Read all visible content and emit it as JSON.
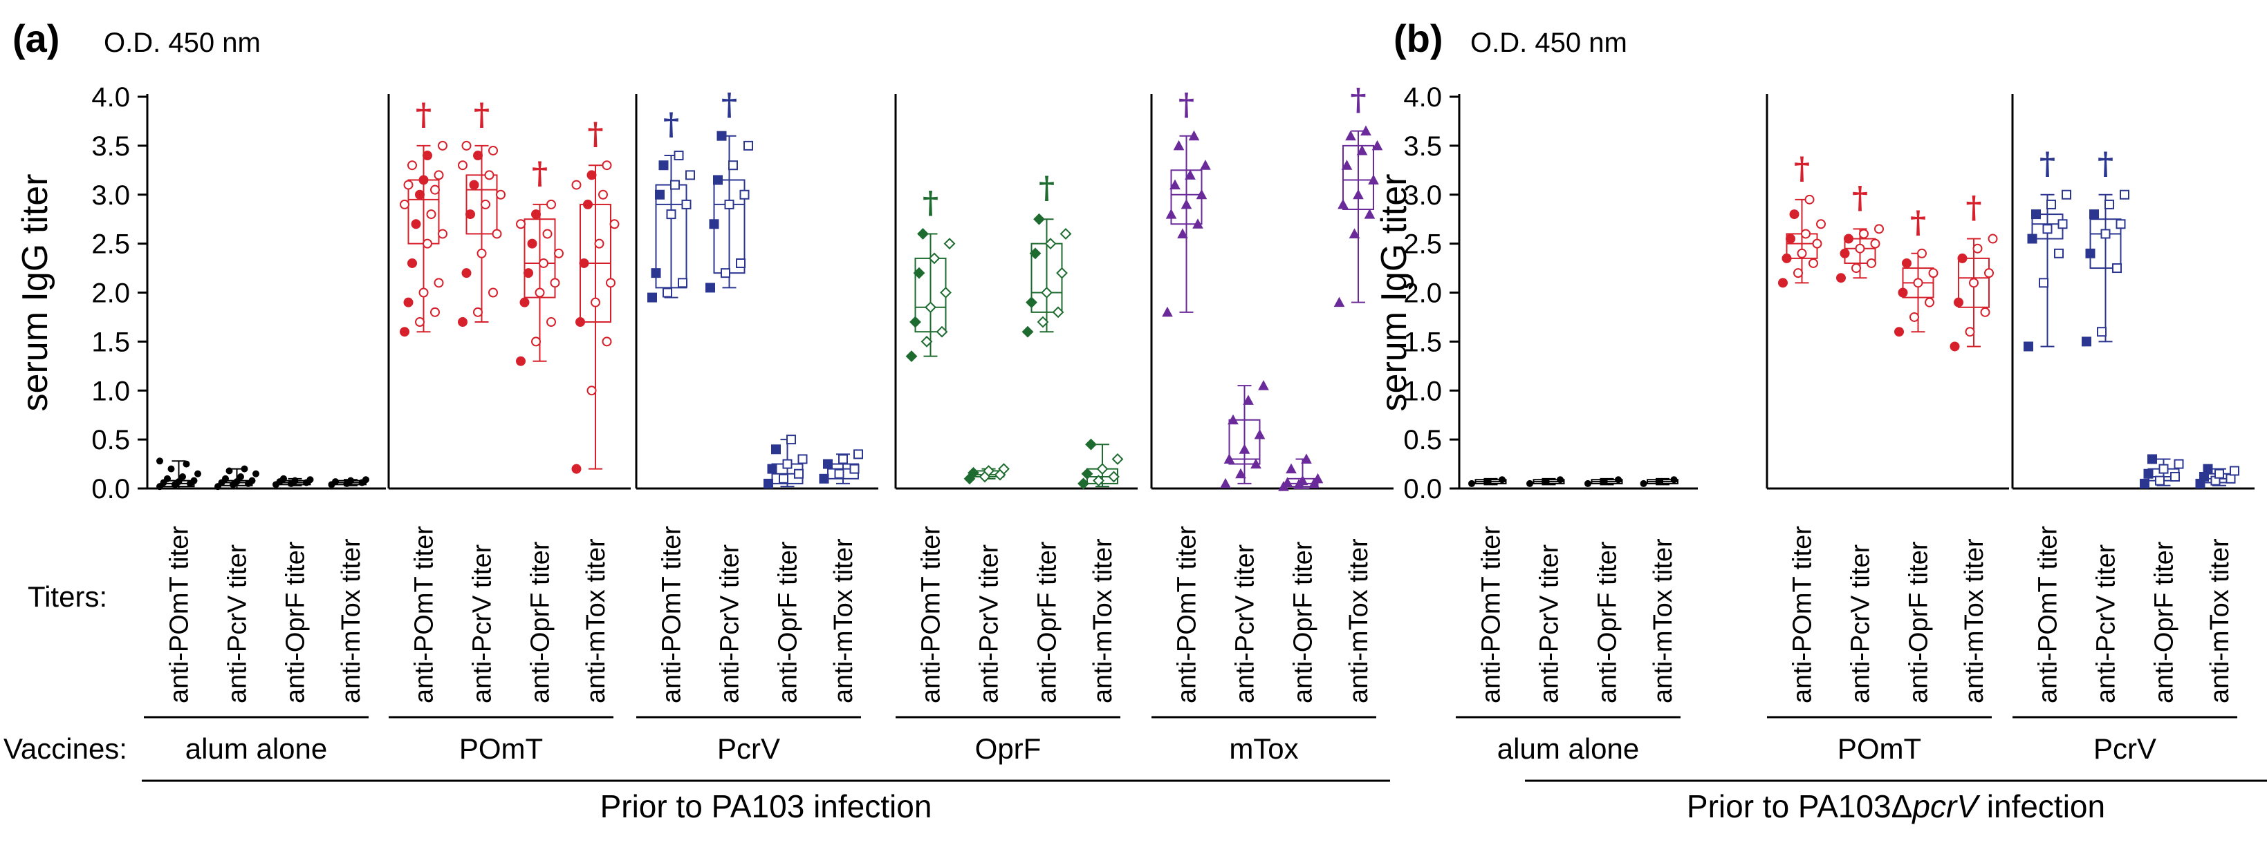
{
  "panels": [
    {
      "id": "a",
      "letter": "(a)",
      "units": "O.D. 450 nm",
      "ylabel": "serum IgG titer",
      "titers_label": "Titers:",
      "vaccines_label": "Vaccines:",
      "infection_label_plain": "Prior to PA103 infection",
      "infection_label_italic": "",
      "groups": [
        {
          "vaccine": "alum alone",
          "color": "#000000",
          "shape": "circle-filled"
        },
        {
          "vaccine": "POmT",
          "color": "#d6202b",
          "shape": "circle"
        },
        {
          "vaccine": "PcrV",
          "color": "#2b3690",
          "shape": "square"
        },
        {
          "vaccine": "OprF",
          "color": "#1e6b30",
          "shape": "diamond"
        },
        {
          "vaccine": "mTox",
          "color": "#6a2a9a",
          "shape": "triangle"
        }
      ]
    },
    {
      "id": "b",
      "letter": "(b)",
      "units": "O.D. 450 nm",
      "ylabel": "serum IgG titer",
      "infection_label_plain": "Prior to PA103Δ",
      "infection_label_italic": "pcrV",
      "infection_label_suffix": " infection",
      "groups": [
        {
          "vaccine": "alum alone",
          "color": "#000000",
          "shape": "circle-filled"
        },
        {
          "vaccine": "POmT",
          "color": "#d6202b",
          "shape": "circle"
        },
        {
          "vaccine": "PcrV",
          "color": "#2b3690",
          "shape": "square"
        }
      ]
    }
  ],
  "chart_data": [
    {
      "type": "box",
      "title": "(a)",
      "units": "O.D. 450 nm",
      "ylabel": "serum IgG titer",
      "ylim": [
        0.0,
        4.0
      ],
      "yticks": [
        "0.0",
        "0.5",
        "1.0",
        "1.5",
        "2.0",
        "2.5",
        "3.0",
        "3.5",
        "4.0"
      ],
      "categories": [
        "anti-POmT titer",
        "anti-PcrV titer",
        "anti-OprF titer",
        "anti-mTox titer"
      ],
      "xlabel": "Prior to PA103 infection",
      "series": [
        {
          "name": "alum alone",
          "boxes": [
            {
              "q1": 0.02,
              "median": 0.05,
              "q3": 0.08,
              "min": 0.0,
              "max": 0.28,
              "points": [
                0.02,
                0.04,
                0.05,
                0.06,
                0.07,
                0.08,
                0.1,
                0.12,
                0.15,
                0.2,
                0.25,
                0.28
              ],
              "marker": false
            },
            {
              "q1": 0.03,
              "median": 0.06,
              "q3": 0.08,
              "min": 0.0,
              "max": 0.2,
              "points": [
                0.02,
                0.04,
                0.05,
                0.06,
                0.07,
                0.08,
                0.1,
                0.12,
                0.15,
                0.18,
                0.2
              ],
              "marker": false
            },
            {
              "q1": 0.04,
              "median": 0.06,
              "q3": 0.08,
              "min": 0.03,
              "max": 0.1,
              "points": [
                0.04,
                0.05,
                0.06,
                0.07,
                0.08,
                0.09,
                0.1
              ],
              "marker": false
            },
            {
              "q1": 0.04,
              "median": 0.06,
              "q3": 0.08,
              "min": 0.03,
              "max": 0.09,
              "points": [
                0.04,
                0.05,
                0.06,
                0.07,
                0.08,
                0.09
              ],
              "marker": false
            }
          ]
        },
        {
          "name": "POmT",
          "boxes": [
            {
              "q1": 2.5,
              "median": 2.95,
              "q3": 3.15,
              "min": 1.6,
              "max": 3.5,
              "points": [
                1.6,
                1.7,
                1.8,
                1.9,
                2.0,
                2.1,
                2.3,
                2.5,
                2.6,
                2.7,
                2.8,
                2.9,
                3.0,
                3.05,
                3.1,
                3.15,
                3.2,
                3.3,
                3.4,
                3.5
              ],
              "marker": true
            },
            {
              "q1": 2.6,
              "median": 3.05,
              "q3": 3.2,
              "min": 1.7,
              "max": 3.5,
              "points": [
                1.7,
                1.8,
                2.0,
                2.2,
                2.4,
                2.6,
                2.8,
                2.9,
                3.0,
                3.1,
                3.2,
                3.3,
                3.4,
                3.45,
                3.5
              ],
              "marker": true
            },
            {
              "q1": 1.95,
              "median": 2.3,
              "q3": 2.75,
              "min": 1.3,
              "max": 2.9,
              "points": [
                1.3,
                1.5,
                1.7,
                1.9,
                2.0,
                2.1,
                2.2,
                2.3,
                2.4,
                2.5,
                2.6,
                2.7,
                2.8,
                2.9
              ],
              "marker": true
            },
            {
              "q1": 1.7,
              "median": 2.3,
              "q3": 2.9,
              "min": 0.2,
              "max": 3.3,
              "points": [
                0.2,
                1.0,
                1.5,
                1.7,
                1.9,
                2.1,
                2.3,
                2.5,
                2.7,
                2.9,
                3.0,
                3.1,
                3.2,
                3.3
              ],
              "marker": true
            }
          ]
        },
        {
          "name": "PcrV",
          "boxes": [
            {
              "q1": 2.05,
              "median": 2.9,
              "q3": 3.1,
              "min": 1.95,
              "max": 3.4,
              "points": [
                1.95,
                2.0,
                2.1,
                2.2,
                2.8,
                2.9,
                3.0,
                3.1,
                3.2,
                3.3,
                3.4
              ],
              "marker": true
            },
            {
              "q1": 2.2,
              "median": 2.9,
              "q3": 3.15,
              "min": 2.05,
              "max": 3.6,
              "points": [
                2.05,
                2.2,
                2.3,
                2.7,
                2.9,
                3.0,
                3.15,
                3.3,
                3.5,
                3.6
              ],
              "marker": true
            },
            {
              "q1": 0.05,
              "median": 0.15,
              "q3": 0.25,
              "min": 0.02,
              "max": 0.5,
              "points": [
                0.05,
                0.1,
                0.15,
                0.2,
                0.25,
                0.3,
                0.4,
                0.5
              ],
              "marker": false
            },
            {
              "q1": 0.1,
              "median": 0.2,
              "q3": 0.25,
              "min": 0.05,
              "max": 0.35,
              "points": [
                0.1,
                0.15,
                0.2,
                0.25,
                0.3,
                0.35
              ],
              "marker": false
            }
          ]
        },
        {
          "name": "OprF",
          "boxes": [
            {
              "q1": 1.6,
              "median": 1.85,
              "q3": 2.35,
              "min": 1.35,
              "max": 2.6,
              "points": [
                1.35,
                1.5,
                1.6,
                1.7,
                1.85,
                2.0,
                2.2,
                2.35,
                2.5,
                2.6
              ],
              "marker": true
            },
            {
              "q1": 0.12,
              "median": 0.14,
              "q3": 0.18,
              "min": 0.1,
              "max": 0.2,
              "points": [
                0.1,
                0.12,
                0.14,
                0.16,
                0.18,
                0.2
              ],
              "marker": false
            },
            {
              "q1": 1.8,
              "median": 2.0,
              "q3": 2.5,
              "min": 1.6,
              "max": 2.75,
              "points": [
                1.6,
                1.7,
                1.8,
                1.9,
                2.0,
                2.2,
                2.4,
                2.5,
                2.6,
                2.75
              ],
              "marker": true
            },
            {
              "q1": 0.05,
              "median": 0.12,
              "q3": 0.2,
              "min": 0.02,
              "max": 0.45,
              "points": [
                0.05,
                0.08,
                0.12,
                0.15,
                0.2,
                0.3,
                0.45
              ],
              "marker": false
            }
          ]
        },
        {
          "name": "mTox",
          "boxes": [
            {
              "q1": 2.7,
              "median": 3.0,
              "q3": 3.25,
              "min": 1.8,
              "max": 3.6,
              "points": [
                1.8,
                2.6,
                2.7,
                2.8,
                2.9,
                3.0,
                3.1,
                3.2,
                3.3,
                3.5,
                3.6
              ],
              "marker": true
            },
            {
              "q1": 0.25,
              "median": 0.3,
              "q3": 0.7,
              "min": 0.05,
              "max": 1.05,
              "points": [
                0.05,
                0.15,
                0.25,
                0.3,
                0.4,
                0.55,
                0.7,
                0.9,
                1.05
              ],
              "marker": false
            },
            {
              "q1": 0.02,
              "median": 0.05,
              "q3": 0.1,
              "min": 0.0,
              "max": 0.3,
              "points": [
                0.02,
                0.04,
                0.05,
                0.06,
                0.08,
                0.1,
                0.2,
                0.3
              ],
              "marker": false
            },
            {
              "q1": 2.85,
              "median": 3.15,
              "q3": 3.5,
              "min": 1.9,
              "max": 3.65,
              "points": [
                1.9,
                2.6,
                2.8,
                2.9,
                3.0,
                3.15,
                3.3,
                3.45,
                3.5,
                3.6,
                3.65
              ],
              "marker": true
            }
          ]
        }
      ]
    },
    {
      "type": "box",
      "title": "(b)",
      "units": "O.D. 450 nm",
      "ylabel": "serum IgG titer",
      "ylim": [
        0.0,
        4.0
      ],
      "yticks": [
        "0.0",
        "0.5",
        "1.0",
        "1.5",
        "2.0",
        "2.5",
        "3.0",
        "3.5",
        "4.0"
      ],
      "categories": [
        "anti-POmT titer",
        "anti-PcrV titer",
        "anti-OprF titer",
        "anti-mTox titer"
      ],
      "xlabel": "Prior to PA103ΔpcrV infection",
      "series": [
        {
          "name": "alum alone",
          "boxes": [
            {
              "q1": 0.05,
              "median": 0.07,
              "q3": 0.09,
              "min": 0.04,
              "max": 0.1,
              "points": [
                0.05,
                0.07,
                0.09
              ],
              "marker": false
            },
            {
              "q1": 0.05,
              "median": 0.07,
              "q3": 0.09,
              "min": 0.04,
              "max": 0.1,
              "points": [
                0.05,
                0.07,
                0.09
              ],
              "marker": false
            },
            {
              "q1": 0.05,
              "median": 0.07,
              "q3": 0.09,
              "min": 0.04,
              "max": 0.1,
              "points": [
                0.05,
                0.07,
                0.09
              ],
              "marker": false
            },
            {
              "q1": 0.05,
              "median": 0.07,
              "q3": 0.09,
              "min": 0.04,
              "max": 0.1,
              "points": [
                0.05,
                0.07,
                0.09
              ],
              "marker": false
            }
          ]
        },
        {
          "name": "POmT",
          "boxes": [
            {
              "q1": 2.35,
              "median": 2.5,
              "q3": 2.6,
              "min": 2.1,
              "max": 2.95,
              "points": [
                2.1,
                2.2,
                2.3,
                2.35,
                2.4,
                2.5,
                2.55,
                2.6,
                2.7,
                2.8,
                2.95
              ],
              "marker": true
            },
            {
              "q1": 2.3,
              "median": 2.45,
              "q3": 2.55,
              "min": 2.15,
              "max": 2.65,
              "points": [
                2.15,
                2.25,
                2.3,
                2.4,
                2.45,
                2.5,
                2.55,
                2.6,
                2.65
              ],
              "marker": true
            },
            {
              "q1": 1.95,
              "median": 2.1,
              "q3": 2.25,
              "min": 1.6,
              "max": 2.4,
              "points": [
                1.6,
                1.75,
                1.9,
                2.0,
                2.1,
                2.2,
                2.3,
                2.4
              ],
              "marker": true
            },
            {
              "q1": 1.85,
              "median": 2.15,
              "q3": 2.35,
              "min": 1.45,
              "max": 2.55,
              "points": [
                1.45,
                1.6,
                1.8,
                1.9,
                2.1,
                2.2,
                2.35,
                2.45,
                2.55
              ],
              "marker": true
            }
          ]
        },
        {
          "name": "PcrV",
          "boxes": [
            {
              "q1": 2.55,
              "median": 2.7,
              "q3": 2.8,
              "min": 1.45,
              "max": 3.0,
              "points": [
                1.45,
                2.1,
                2.4,
                2.55,
                2.65,
                2.7,
                2.8,
                2.9,
                3.0
              ],
              "marker": true
            },
            {
              "q1": 2.25,
              "median": 2.6,
              "q3": 2.75,
              "min": 1.5,
              "max": 3.0,
              "points": [
                1.5,
                1.6,
                2.25,
                2.4,
                2.6,
                2.7,
                2.8,
                2.9,
                3.0
              ],
              "marker": true
            },
            {
              "q1": 0.08,
              "median": 0.12,
              "q3": 0.2,
              "min": 0.03,
              "max": 0.3,
              "points": [
                0.05,
                0.08,
                0.12,
                0.15,
                0.2,
                0.25,
                0.3
              ],
              "marker": false
            },
            {
              "q1": 0.06,
              "median": 0.1,
              "q3": 0.15,
              "min": 0.03,
              "max": 0.2,
              "points": [
                0.05,
                0.08,
                0.1,
                0.12,
                0.15,
                0.18,
                0.2
              ],
              "marker": false
            }
          ]
        }
      ]
    }
  ]
}
